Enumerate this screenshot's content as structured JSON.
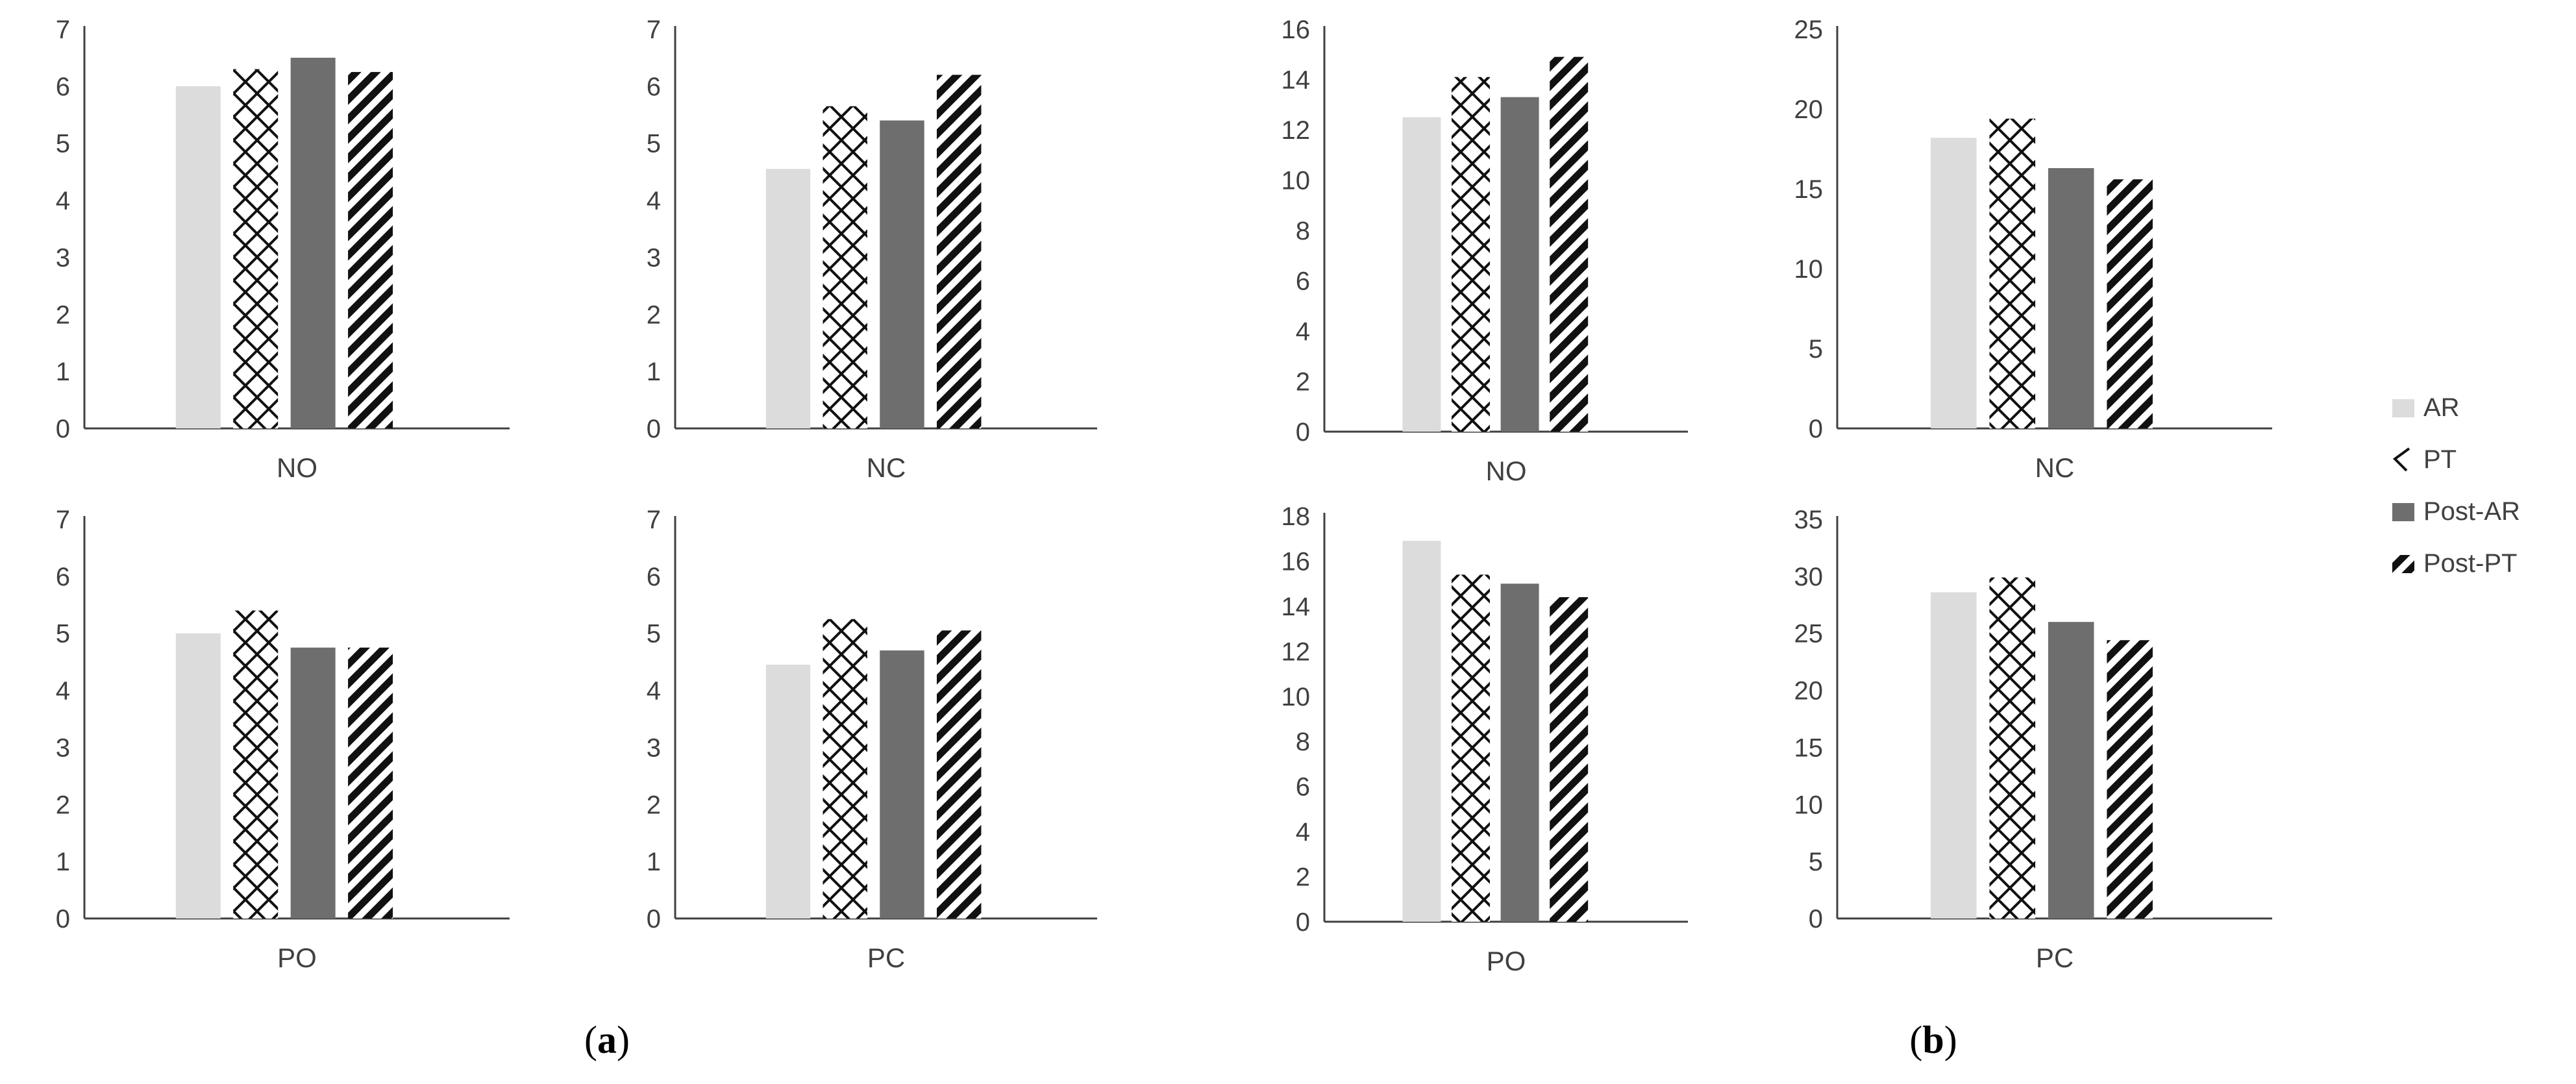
{
  "series": [
    {
      "name": "AR",
      "pattern": "solid",
      "color": "#dcdcdc"
    },
    {
      "name": "PT",
      "pattern": "cross",
      "color": "#111111"
    },
    {
      "name": "Post-AR",
      "pattern": "solid",
      "color": "#6e6e6e"
    },
    {
      "name": "Post-PT",
      "pattern": "diag",
      "color": "#111111"
    }
  ],
  "legend_position": "right",
  "panel_labels": {
    "a": "(a)",
    "b": "(b)"
  },
  "panel_label_bold": {
    "a": "a",
    "b": "b"
  },
  "chart_data": [
    {
      "type": "bar",
      "group": "a",
      "category": "NO",
      "ylim": [
        0,
        7
      ],
      "yticks": [
        0,
        1,
        2,
        3,
        4,
        5,
        6,
        7
      ],
      "series": [
        "AR",
        "PT",
        "Post-AR",
        "Post-PT"
      ],
      "values": [
        6.0,
        6.3,
        6.5,
        6.25
      ]
    },
    {
      "type": "bar",
      "group": "a",
      "category": "NC",
      "ylim": [
        0,
        7
      ],
      "yticks": [
        0,
        1,
        2,
        3,
        4,
        5,
        6,
        7
      ],
      "series": [
        "AR",
        "PT",
        "Post-AR",
        "Post-PT"
      ],
      "values": [
        4.55,
        5.65,
        5.4,
        6.2
      ]
    },
    {
      "type": "bar",
      "group": "b",
      "category": "NO",
      "ylim": [
        0,
        16
      ],
      "yticks": [
        0,
        2,
        4,
        6,
        8,
        10,
        12,
        14,
        16
      ],
      "series": [
        "AR",
        "PT",
        "Post-AR",
        "Post-PT"
      ],
      "values": [
        12.5,
        14.1,
        13.3,
        14.9
      ]
    },
    {
      "type": "bar",
      "group": "b",
      "category": "NC",
      "ylim": [
        0,
        25
      ],
      "yticks": [
        0,
        5,
        10,
        15,
        20,
        25
      ],
      "series": [
        "AR",
        "PT",
        "Post-AR",
        "Post-PT"
      ],
      "values": [
        18.2,
        19.4,
        16.3,
        15.6
      ]
    },
    {
      "type": "bar",
      "group": "a",
      "category": "PO",
      "ylim": [
        0,
        7
      ],
      "yticks": [
        0,
        1,
        2,
        3,
        4,
        5,
        6,
        7
      ],
      "series": [
        "AR",
        "PT",
        "Post-AR",
        "Post-PT"
      ],
      "values": [
        5.0,
        5.4,
        4.75,
        4.75
      ]
    },
    {
      "type": "bar",
      "group": "a",
      "category": "PC",
      "ylim": [
        0,
        7
      ],
      "yticks": [
        0,
        1,
        2,
        3,
        4,
        5,
        6,
        7
      ],
      "series": [
        "AR",
        "PT",
        "Post-AR",
        "Post-PT"
      ],
      "values": [
        4.45,
        5.25,
        4.7,
        5.05
      ]
    },
    {
      "type": "bar",
      "group": "b",
      "category": "PO",
      "ylim": [
        0,
        18
      ],
      "yticks": [
        0,
        2,
        4,
        6,
        8,
        10,
        12,
        14,
        16,
        18
      ],
      "series": [
        "AR",
        "PT",
        "Post-AR",
        "Post-PT"
      ],
      "values": [
        16.9,
        15.4,
        15.0,
        14.4
      ]
    },
    {
      "type": "bar",
      "group": "b",
      "category": "PC",
      "ylim": [
        0,
        35
      ],
      "yticks": [
        0,
        5,
        10,
        15,
        20,
        25,
        30,
        35
      ],
      "series": [
        "AR",
        "PT",
        "Post-AR",
        "Post-PT"
      ],
      "values": [
        28.6,
        29.9,
        26.0,
        24.4
      ]
    }
  ]
}
